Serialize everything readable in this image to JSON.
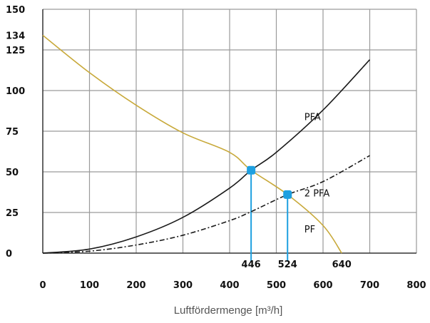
{
  "chart_data": {
    "type": "line",
    "xlabel": "Luftfördermenge [m³/h]",
    "ylabel": "",
    "xlim": [
      0,
      800
    ],
    "ylim": [
      0,
      150
    ],
    "x_ticks": [
      "0",
      "100",
      "200",
      "300",
      "400",
      "500",
      "600",
      "700",
      "800"
    ],
    "x_tick_values": [
      0,
      100,
      200,
      300,
      400,
      500,
      600,
      700,
      800
    ],
    "y_ticks": [
      "0",
      "25",
      "50",
      "75",
      "100",
      "125",
      "150"
    ],
    "y_tick_values": [
      0,
      25,
      50,
      75,
      100,
      125,
      150
    ],
    "extra_y_ticks": [
      {
        "label": "134",
        "value": 134
      }
    ],
    "grid": true,
    "series": [
      {
        "name": "PF",
        "color": "#c8a93a",
        "style": "solid",
        "x": [
          0,
          100,
          200,
          300,
          400,
          446,
          524,
          600,
          640
        ],
        "y": [
          134,
          111,
          91,
          74,
          62,
          51,
          36,
          17,
          0
        ]
      },
      {
        "name": "PFA",
        "color": "#1a1a1a",
        "style": "solid",
        "x": [
          0,
          100,
          200,
          300,
          400,
          446,
          500,
          600,
          700
        ],
        "y": [
          0,
          2.5,
          10,
          22,
          40,
          51,
          62,
          88,
          119
        ]
      },
      {
        "name": "2 PFA",
        "color": "#1a1a1a",
        "style": "dashed",
        "x": [
          0,
          100,
          200,
          300,
          400,
          446,
          524,
          600,
          700
        ],
        "y": [
          0,
          1.2,
          5,
          11,
          20,
          25.5,
          36,
          44,
          60
        ]
      }
    ],
    "operating_points": [
      {
        "x": 446,
        "y": 51,
        "label": "446",
        "color": "#1ea0e0"
      },
      {
        "x": 524,
        "y": 36,
        "label": "524",
        "color": "#1ea0e0"
      }
    ],
    "marked_x": [
      {
        "x": 640,
        "label": "640"
      }
    ],
    "series_labels": [
      {
        "text": "PFA",
        "x": 560,
        "y": 84,
        "color": "#1a1a1a"
      },
      {
        "text": "2 PFA",
        "x": 560,
        "y": 37,
        "color": "#1a1a1a"
      },
      {
        "text": "PF",
        "x": 560,
        "y": 15,
        "color": "#c8a93a"
      }
    ]
  }
}
